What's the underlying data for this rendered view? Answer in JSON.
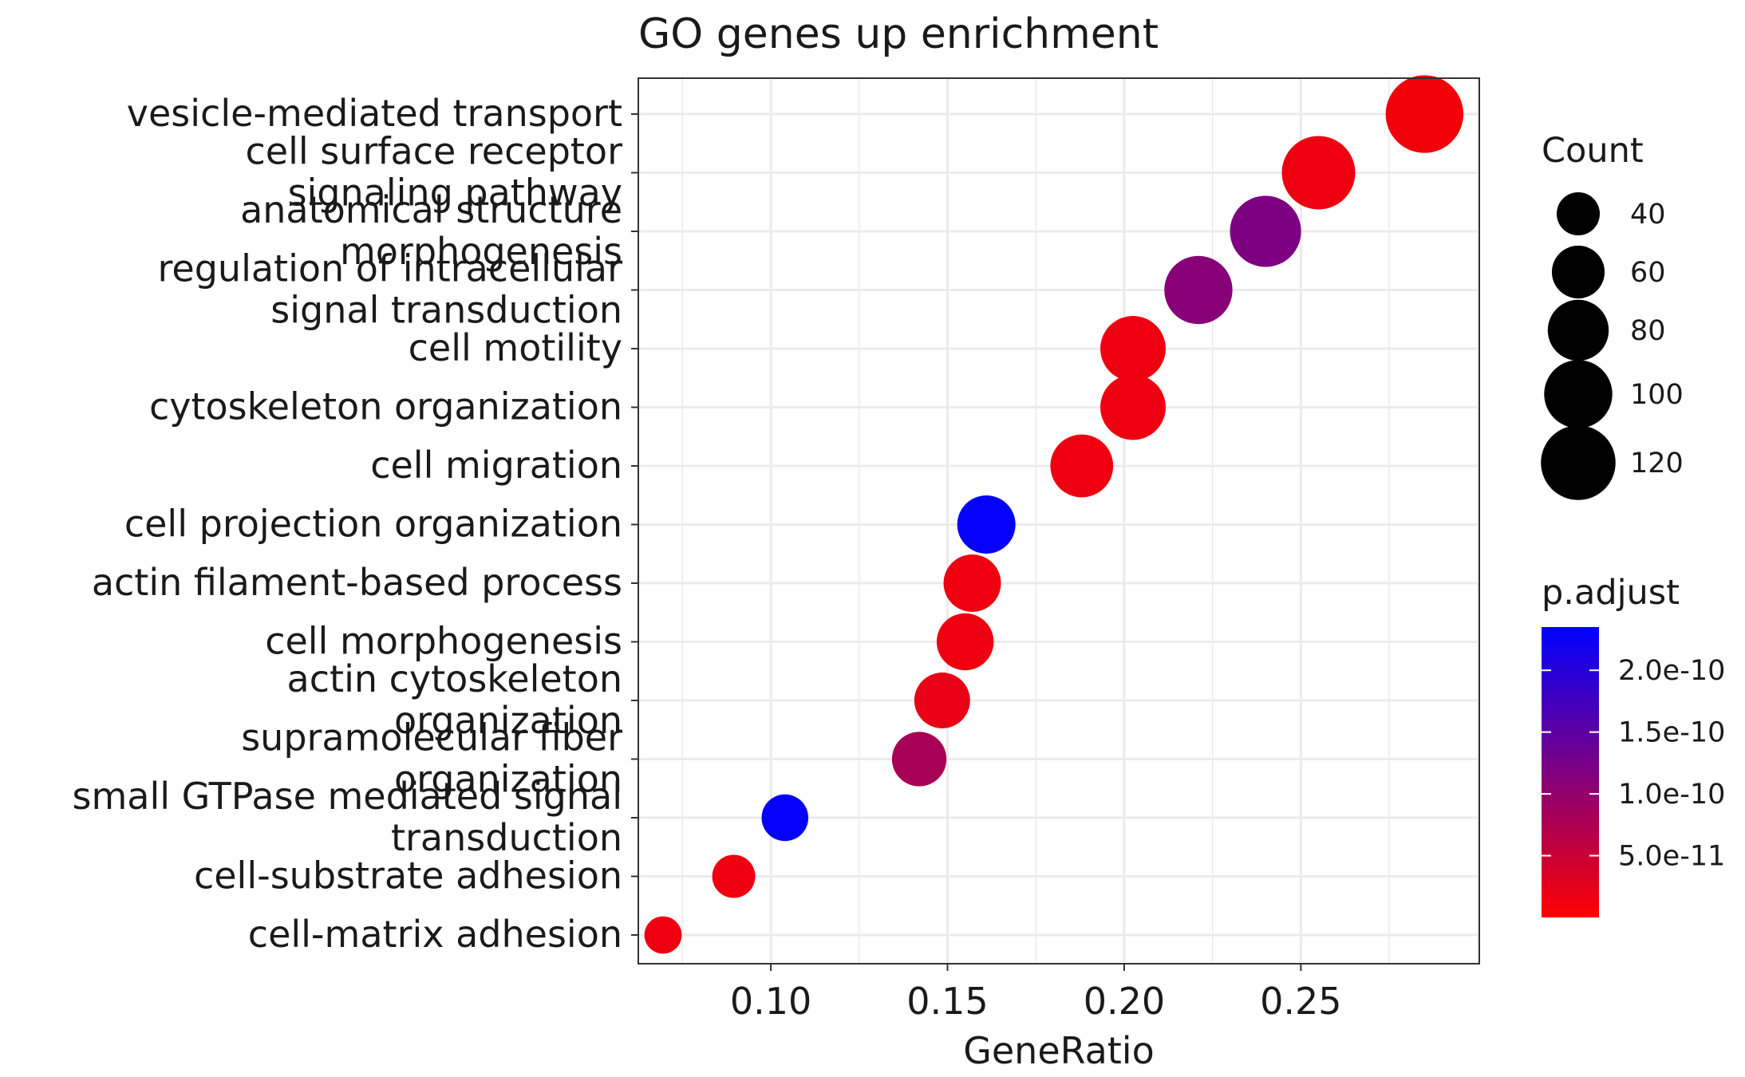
{
  "chart_data": {
    "type": "scatter",
    "title": "GO genes up enrichment",
    "xlabel": "GeneRatio",
    "ylabel": "",
    "xlim": [
      0.0625,
      0.3005
    ],
    "x_ticks": [
      0.1,
      0.15,
      0.2,
      0.25
    ],
    "x_tick_labels": [
      "0.10",
      "0.15",
      "0.20",
      "0.25"
    ],
    "grid": true,
    "categories": [
      "vesicle-mediated transport",
      "cell surface receptor signaling pathway",
      "anatomical structure morphogenesis",
      "regulation of intracellular signal transduction",
      "cell motility",
      "cytoskeleton organization",
      "cell migration",
      "cell projection organization",
      "actin filament-based process",
      "cell morphogenesis",
      "actin cytoskeleton organization",
      "supramolecular fiber organization",
      "small GTPase mediated signal transduction",
      "cell-substrate adhesion",
      "cell-matrix adhesion"
    ],
    "category_label_lines": [
      [
        "vesicle-mediated transport"
      ],
      [
        "cell surface receptor",
        "signaling pathway"
      ],
      [
        "anatomical structure",
        "morphogenesis"
      ],
      [
        "regulation of intracellular",
        "signal transduction"
      ],
      [
        "cell motility"
      ],
      [
        "cytoskeleton organization"
      ],
      [
        "cell migration"
      ],
      [
        "cell projection organization"
      ],
      [
        "actin filament-based process"
      ],
      [
        "cell morphogenesis"
      ],
      [
        "actin cytoskeleton",
        "organization"
      ],
      [
        "supramolecular fiber",
        "organization"
      ],
      [
        "small GTPase mediated signal",
        "transduction"
      ],
      [
        "cell-substrate adhesion"
      ],
      [
        "cell-matrix adhesion"
      ]
    ],
    "points": [
      {
        "term": "vesicle-mediated transport",
        "gene_ratio": 0.285,
        "count": 130,
        "p_adjust": 1e-11
      },
      {
        "term": "cell surface receptor signaling pathway",
        "gene_ratio": 0.255,
        "count": 116,
        "p_adjust": 1.5e-11
      },
      {
        "term": "anatomical structure morphogenesis",
        "gene_ratio": 0.24,
        "count": 109,
        "p_adjust": 1.2e-10
      },
      {
        "term": "regulation of intracellular signal transduction",
        "gene_ratio": 0.221,
        "count": 100,
        "p_adjust": 1.1e-10
      },
      {
        "term": "cell motility",
        "gene_ratio": 0.2025,
        "count": 92,
        "p_adjust": 1.5e-11
      },
      {
        "term": "cytoskeleton organization",
        "gene_ratio": 0.2025,
        "count": 92,
        "p_adjust": 1.5e-11
      },
      {
        "term": "cell migration",
        "gene_ratio": 0.188,
        "count": 85,
        "p_adjust": 1.5e-11
      },
      {
        "term": "cell projection organization",
        "gene_ratio": 0.161,
        "count": 73,
        "p_adjust": 2.3e-10
      },
      {
        "term": "actin filament-based process",
        "gene_ratio": 0.157,
        "count": 71,
        "p_adjust": 1.5e-11
      },
      {
        "term": "cell morphogenesis",
        "gene_ratio": 0.155,
        "count": 70,
        "p_adjust": 1.5e-11
      },
      {
        "term": "actin cytoskeleton organization",
        "gene_ratio": 0.1485,
        "count": 67,
        "p_adjust": 2e-11
      },
      {
        "term": "supramolecular fiber organization",
        "gene_ratio": 0.142,
        "count": 64,
        "p_adjust": 8e-11
      },
      {
        "term": "small GTPase mediated signal transduction",
        "gene_ratio": 0.104,
        "count": 47,
        "p_adjust": 2.3e-10
      },
      {
        "term": "cell-substrate adhesion",
        "gene_ratio": 0.0895,
        "count": 40,
        "p_adjust": 1.5e-11
      },
      {
        "term": "cell-matrix adhesion",
        "gene_ratio": 0.0695,
        "count": 30,
        "p_adjust": 1.5e-11
      }
    ],
    "legend_size": {
      "title": "Count",
      "values": [
        40,
        60,
        80,
        100,
        120
      ],
      "labels": [
        "40",
        "60",
        "80",
        "100",
        "120"
      ]
    },
    "legend_color": {
      "title": "p.adjust",
      "low_color": "#ff0000",
      "high_color": "#0000ff",
      "range": [
        0.0,
        2.35e-10
      ],
      "ticks": [
        5e-11,
        1e-10,
        1.5e-10,
        2e-10
      ],
      "tick_labels": [
        "5.0e-11",
        "1.0e-10",
        "1.5e-10",
        "2.0e-10"
      ],
      "placement": "right"
    }
  }
}
